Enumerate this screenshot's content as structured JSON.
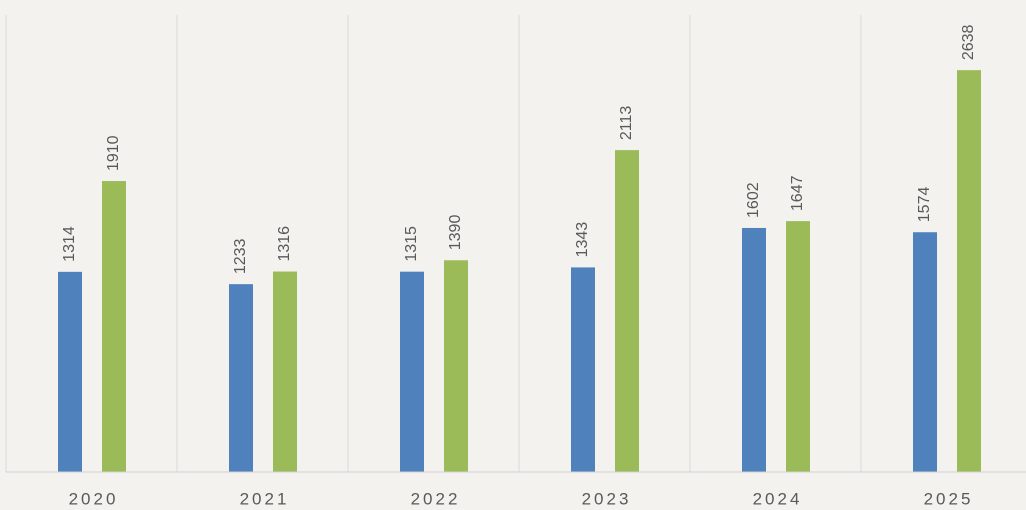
{
  "chart_data": {
    "type": "bar",
    "categories": [
      "2020",
      "2021",
      "2022",
      "2023",
      "2024",
      "2025"
    ],
    "series": [
      {
        "color": "#4f81bd",
        "values": [
          1314,
          1233,
          1315,
          1343,
          1602,
          1574
        ]
      },
      {
        "color": "#9bbb59",
        "values": [
          1910,
          1316,
          1390,
          2113,
          1647,
          2638
        ]
      }
    ],
    "ylim": [
      0,
      3000
    ],
    "data_labels": true,
    "category_separators": true
  }
}
